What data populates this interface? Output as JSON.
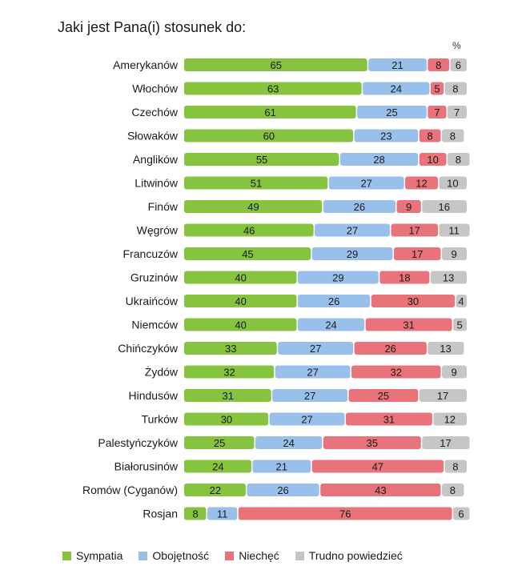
{
  "chart_data": {
    "type": "bar",
    "orientation": "horizontal",
    "stacked": true,
    "title": "Jaki jest Pana(i) stosunek do:",
    "unit": "%",
    "categories": [
      "Amerykanów",
      "Włochów",
      "Czechów",
      "Słowaków",
      "Anglików",
      "Litwinów",
      "Finów",
      "Węgrów",
      "Francuzów",
      "Gruzinów",
      "Ukraińców",
      "Niemców",
      "Chińczyków",
      "Żydów",
      "Hindusów",
      "Turków",
      "Palestyńczyków",
      "Białorusinów",
      "Romów (Cyganów)",
      "Rosjan"
    ],
    "series": [
      {
        "name": "Sympatia",
        "color": "#86c440",
        "values": [
          65,
          63,
          61,
          60,
          55,
          51,
          49,
          46,
          45,
          40,
          40,
          40,
          33,
          32,
          31,
          30,
          25,
          24,
          22,
          8
        ]
      },
      {
        "name": "Obojętność",
        "color": "#99c0ea",
        "values": [
          21,
          24,
          25,
          23,
          28,
          27,
          26,
          27,
          29,
          29,
          26,
          24,
          27,
          27,
          27,
          27,
          24,
          21,
          26,
          11
        ]
      },
      {
        "name": "Niechęć",
        "color": "#e8737b",
        "values": [
          8,
          5,
          7,
          8,
          10,
          12,
          9,
          17,
          17,
          18,
          30,
          31,
          26,
          32,
          25,
          31,
          35,
          47,
          43,
          76
        ]
      },
      {
        "name": "Trudno powiedzieć",
        "color": "#c6c6c6",
        "values": [
          6,
          8,
          7,
          8,
          8,
          10,
          16,
          11,
          9,
          13,
          4,
          5,
          13,
          9,
          17,
          12,
          17,
          8,
          8,
          6
        ]
      }
    ],
    "xlim": [
      0,
      100
    ],
    "grid": false,
    "legend": "bottom"
  }
}
